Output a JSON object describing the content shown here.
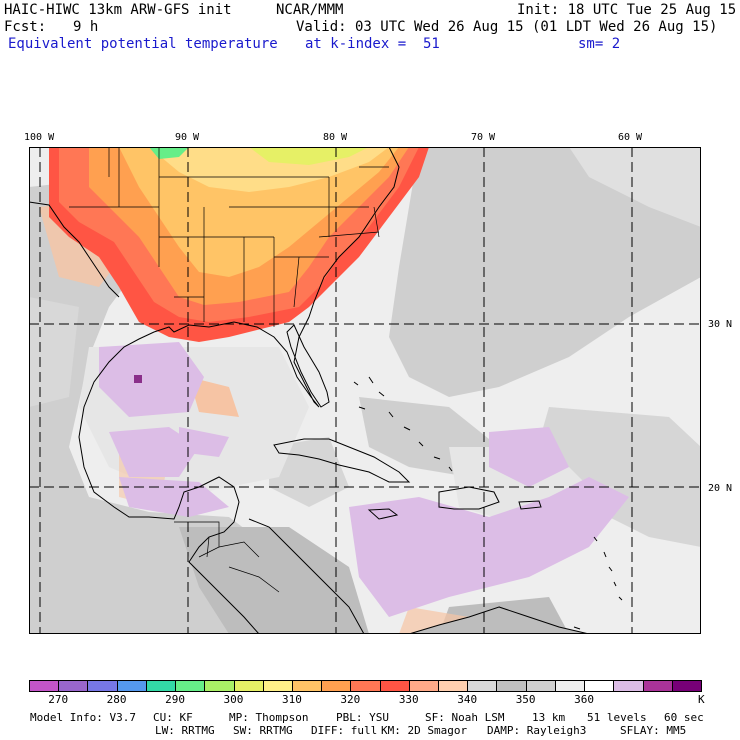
{
  "header": {
    "model_title": "HAIC-HIWC 13km ARW-GFS init",
    "org": "NCAR/MMM",
    "init": "Init: 18 UTC Tue 25 Aug 15",
    "fcst_label": "Fcst:",
    "fcst_value": "9 h",
    "valid": "Valid: 03 UTC Wed 26 Aug 15 (01 LDT Wed 26 Aug 15)",
    "field_name": "Equivalent potential temperature",
    "level": "at k-index =  51",
    "smooth": "sm= 2"
  },
  "map": {
    "lon_labels": [
      "100 W",
      "90 W",
      "80 W",
      "70 W",
      "60 W"
    ],
    "lat_labels": [
      "30 N",
      "20 N"
    ]
  },
  "colorbar": {
    "colors": [
      "#c455c8",
      "#9966cc",
      "#7777e6",
      "#5599ee",
      "#33d9a6",
      "#66ee88",
      "#aaf066",
      "#e6f066",
      "#fff088",
      "#ffc466",
      "#ffa050",
      "#ff7755",
      "#ff5544",
      "#ffaa88",
      "#ffd0b0",
      "#d8d8d8",
      "#c0c0c0",
      "#d0d0d0",
      "#eeeeee",
      "#ffffff",
      "#dcbde6",
      "#aa3399",
      "#770077"
    ],
    "tick_labels": [
      "270",
      "280",
      "290",
      "300",
      "310",
      "320",
      "330",
      "340",
      "350",
      "360"
    ],
    "units": "K"
  },
  "footer": {
    "line1": [
      "Model Info: V3.7",
      "CU: KF",
      "MP: Thompson",
      "PBL: YSU",
      "SF: Noah LSM",
      "13 km",
      "51 levels",
      "60 sec"
    ],
    "line2": [
      "LW: RRTMG",
      "SW: RRTMG",
      "DIFF: full",
      "KM: 2D Smagor",
      "DAMP: Rayleigh3",
      "SFLAY: MM5"
    ]
  }
}
